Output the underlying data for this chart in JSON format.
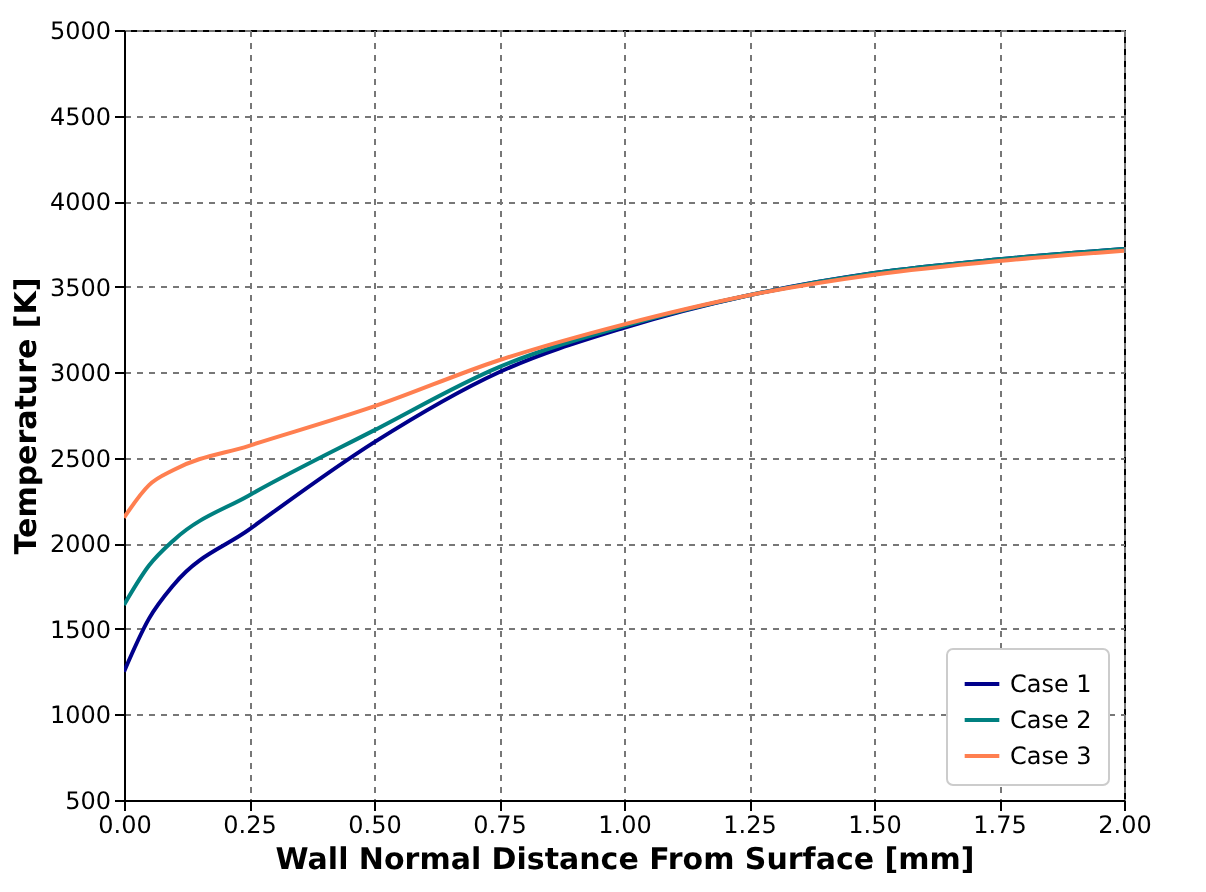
{
  "chart_data": {
    "type": "line",
    "xlabel": "Wall Normal Distance From Surface [mm]",
    "ylabel": "Temperature [K]",
    "x": [
      0,
      0.05,
      0.1,
      0.25,
      0.5,
      0.75,
      1.0,
      1.25,
      1.5,
      1.75,
      2.0
    ],
    "series": [
      {
        "name": "Case 1",
        "color": "#00008b",
        "values": [
          1250,
          1560,
          1760,
          2080,
          2590,
          3000,
          3260,
          3450,
          3580,
          3660,
          3720
        ]
      },
      {
        "name": "Case 2",
        "color": "#008080",
        "values": [
          1640,
          1870,
          2020,
          2280,
          2660,
          3030,
          3270,
          3450,
          3580,
          3660,
          3720
        ]
      },
      {
        "name": "Case 3",
        "color": "#ff7f50",
        "values": [
          2150,
          2340,
          2430,
          2570,
          2800,
          3070,
          3280,
          3450,
          3570,
          3650,
          3710
        ]
      }
    ],
    "xlim": [
      0,
      2
    ],
    "xticks": [
      {
        "value": 0,
        "label": "0.00"
      },
      {
        "value": 0.25,
        "label": "0.25"
      },
      {
        "value": 0.5,
        "label": "0.50"
      },
      {
        "value": 0.75,
        "label": "0.75"
      },
      {
        "value": 1,
        "label": "1.00"
      },
      {
        "value": 1.25,
        "label": "1.25"
      },
      {
        "value": 1.5,
        "label": "1.50"
      },
      {
        "value": 1.75,
        "label": "1.75"
      },
      {
        "value": 2,
        "label": "2.00"
      }
    ],
    "ylim": [
      500,
      5000
    ],
    "yticks": [
      500,
      1000,
      1500,
      2000,
      2500,
      3000,
      3500,
      4000,
      4500,
      5000
    ],
    "grid": true,
    "legend": "bottom right",
    "line_style": "solid",
    "marker": "none"
  }
}
